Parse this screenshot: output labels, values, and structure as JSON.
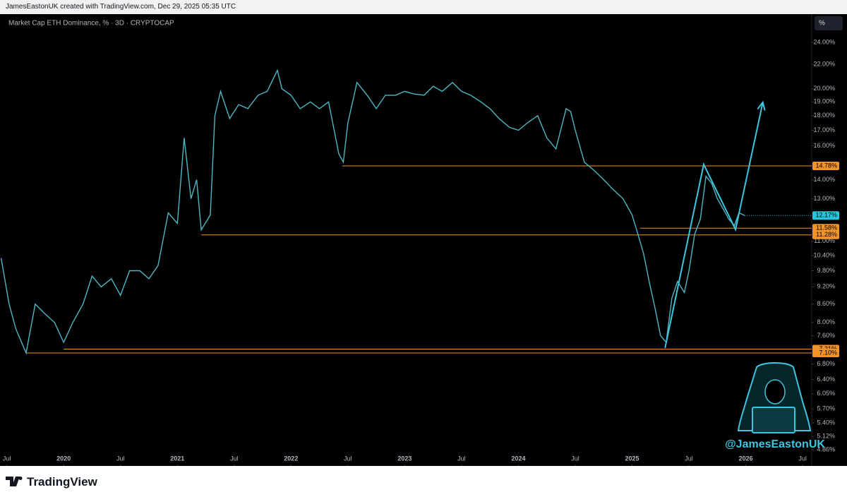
{
  "header": {
    "text": "JamesEastonUK created with TradingView.com, Dec 29, 2025 05:35 UTC"
  },
  "footer": {
    "brand": "TradingView"
  },
  "watermark": "@JamesEastonUK",
  "chart_data": {
    "type": "line",
    "title": "Market Cap ETH Dominance, % · 3D · CRYPTOCAP",
    "unit_button": "%",
    "log_scale": true,
    "color": "#4bb8c4",
    "x": [
      2019.45,
      2019.52,
      2019.58,
      2019.67,
      2019.75,
      2019.83,
      2019.92,
      2020.0,
      2020.08,
      2020.17,
      2020.25,
      2020.33,
      2020.42,
      2020.5,
      2020.58,
      2020.67,
      2020.75,
      2020.83,
      2020.92,
      2021.0,
      2021.06,
      2021.12,
      2021.17,
      2021.21,
      2021.29,
      2021.33,
      2021.38,
      2021.46,
      2021.54,
      2021.62,
      2021.71,
      2021.79,
      2021.88,
      2021.92,
      2022.0,
      2022.08,
      2022.17,
      2022.25,
      2022.33,
      2022.42,
      2022.46,
      2022.5,
      2022.58,
      2022.67,
      2022.75,
      2022.83,
      2022.92,
      2023.0,
      2023.08,
      2023.17,
      2023.25,
      2023.33,
      2023.42,
      2023.5,
      2023.58,
      2023.67,
      2023.75,
      2023.83,
      2023.92,
      2024.0,
      2024.08,
      2024.17,
      2024.25,
      2024.33,
      2024.42,
      2024.46,
      2024.5,
      2024.58,
      2024.67,
      2024.75,
      2024.83,
      2024.92,
      2025.0,
      2025.04,
      2025.1,
      2025.15,
      2025.2,
      2025.25,
      2025.3,
      2025.35,
      2025.4,
      2025.46,
      2025.5,
      2025.55,
      2025.6,
      2025.65,
      2025.7,
      2025.75,
      2025.8,
      2025.85,
      2025.9,
      2025.94,
      2025.99
    ],
    "values": [
      10.3,
      8.6,
      7.8,
      7.1,
      8.6,
      8.3,
      8.0,
      7.4,
      8.0,
      8.6,
      9.6,
      9.2,
      9.5,
      8.9,
      9.8,
      9.8,
      9.5,
      10.0,
      12.3,
      11.8,
      16.5,
      13.0,
      14.0,
      11.5,
      12.2,
      18.0,
      19.8,
      17.8,
      18.8,
      18.5,
      19.5,
      19.8,
      21.5,
      20.0,
      19.5,
      18.5,
      19.0,
      18.5,
      19.0,
      15.5,
      15.0,
      17.5,
      20.5,
      19.5,
      18.5,
      19.5,
      19.5,
      19.8,
      19.6,
      19.5,
      20.2,
      19.8,
      20.5,
      19.8,
      19.5,
      19.0,
      18.5,
      17.8,
      17.2,
      17.0,
      17.5,
      18.0,
      16.5,
      15.8,
      18.5,
      18.3,
      17.0,
      15.0,
      14.5,
      14.0,
      13.5,
      13.0,
      12.2,
      11.5,
      10.5,
      9.4,
      8.5,
      7.6,
      7.4,
      8.8,
      9.4,
      9.0,
      9.8,
      11.3,
      12.0,
      14.2,
      13.8,
      13.0,
      12.5,
      12.0,
      11.7,
      12.3,
      12.17
    ],
    "xlim": [
      2019.44,
      2026.58
    ],
    "ylim": [
      4.56,
      26.8
    ],
    "xticks": [
      {
        "value": 2019.5,
        "label": "Jul"
      },
      2020,
      {
        "value": 2020.5,
        "label": "Jul"
      },
      2021,
      {
        "value": 2021.5,
        "label": "Jul"
      },
      2022,
      {
        "value": 2022.5,
        "label": "Jul"
      },
      2023,
      {
        "value": 2023.5,
        "label": "Jul"
      },
      2024,
      {
        "value": 2024.5,
        "label": "Jul"
      },
      2025,
      {
        "value": 2025.5,
        "label": "Jul"
      },
      2026,
      {
        "value": 2026.5,
        "label": "Jul"
      }
    ],
    "yticks": [
      {
        "value": 24,
        "label": "24.00%"
      },
      {
        "value": 22,
        "label": "22.00%"
      },
      {
        "value": 20,
        "label": "20.00%"
      },
      {
        "value": 19,
        "label": "19.00%"
      },
      {
        "value": 18,
        "label": "18.00%"
      },
      {
        "value": 17,
        "label": "17.00%"
      },
      {
        "value": 16,
        "label": "16.00%"
      },
      {
        "value": 14,
        "label": "14.00%"
      },
      {
        "value": 13,
        "label": "13.00%"
      },
      {
        "value": 11,
        "label": "11.00%"
      },
      {
        "value": 10.4,
        "label": "10.40%"
      },
      {
        "value": 9.8,
        "label": "9.80%"
      },
      {
        "value": 9.2,
        "label": "9.20%"
      },
      {
        "value": 8.6,
        "label": "8.60%"
      },
      {
        "value": 8,
        "label": "8.00%"
      },
      {
        "value": 7.6,
        "label": "7.60%"
      },
      {
        "value": 6.8,
        "label": "6.80%"
      },
      {
        "value": 6.4,
        "label": "6.40%"
      },
      {
        "value": 6.05,
        "label": "6.05%"
      },
      {
        "value": 5.7,
        "label": "5.70%"
      },
      {
        "value": 5.4,
        "label": "5.40%"
      },
      {
        "value": 5.12,
        "label": "5.12%"
      },
      {
        "value": 4.86,
        "label": "4.86%"
      }
    ],
    "levels": [
      {
        "value": 14.78,
        "label": "14.78%",
        "start": 2022.45,
        "color": "#f0932b"
      },
      {
        "value": 11.58,
        "label": "11.58%",
        "start": 2025.07,
        "color": "#f0932b"
      },
      {
        "value": 11.28,
        "label": "11.28%",
        "start": 2021.21,
        "color": "#f0932b"
      },
      {
        "value": 7.21,
        "label": "7.21%",
        "start": 2020.0,
        "color": "#f0932b"
      },
      {
        "value": 7.1,
        "label": "7.10%",
        "start": 2019.67,
        "color": "#f0932b"
      }
    ],
    "last_value": {
      "value": 12.17,
      "label": "12.17%",
      "color": "#26c6da"
    },
    "drawing": {
      "x": [
        2025.29,
        2025.63,
        2025.91,
        2026.15
      ],
      "y": [
        7.24,
        14.87,
        11.52,
        18.97
      ],
      "color": "#3ec6e0"
    }
  }
}
